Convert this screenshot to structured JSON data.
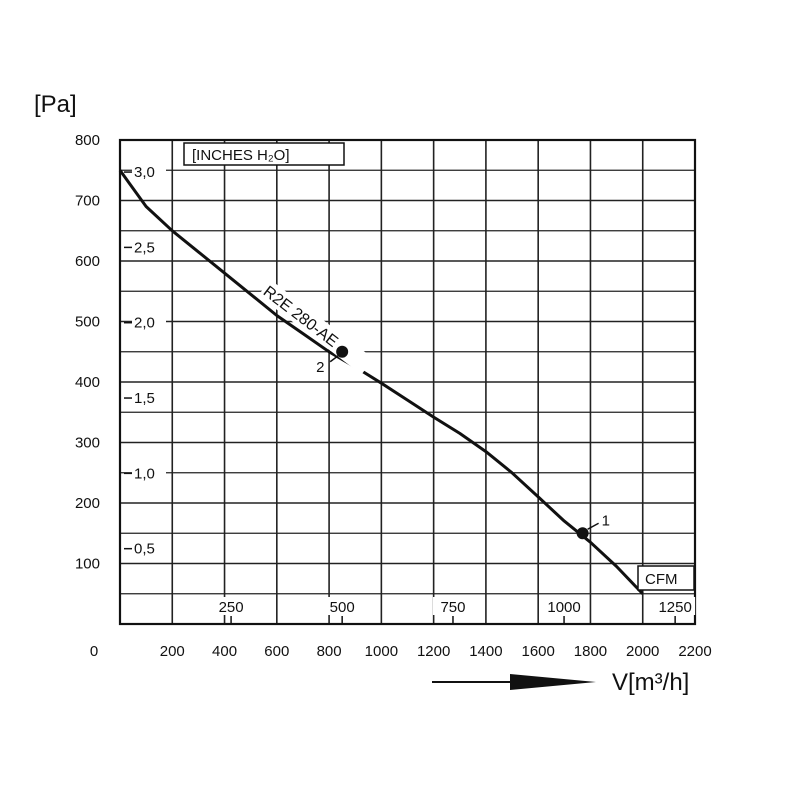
{
  "chart_data": {
    "type": "line",
    "y_unit_label": "[Pa]",
    "x_unit_label": "V[m³/h]",
    "secondary_y_label": "[INCHES H₂O]",
    "secondary_x_label": "CFM",
    "x_ticks": [
      "0",
      "200",
      "400",
      "600",
      "800",
      "1000",
      "1200",
      "1400",
      "1600",
      "1800",
      "2000",
      "2200"
    ],
    "y_ticks": [
      "100",
      "200",
      "300",
      "400",
      "500",
      "600",
      "700",
      "800"
    ],
    "secondary_x_ticks": [
      {
        "label": "250",
        "value": 425
      },
      {
        "label": "500",
        "value": 850
      },
      {
        "label": "750",
        "value": 1274
      },
      {
        "label": "1000",
        "value": 1699
      },
      {
        "label": "1250",
        "value": 2124
      }
    ],
    "secondary_y_ticks": [
      {
        "label": "0,5",
        "value": 124.5
      },
      {
        "label": "1,0",
        "value": 249
      },
      {
        "label": "1,5",
        "value": 373.5
      },
      {
        "label": "2,0",
        "value": 498
      },
      {
        "label": "2,5",
        "value": 622.5
      },
      {
        "label": "3,0",
        "value": 747
      }
    ],
    "xlim": [
      0,
      2200
    ],
    "ylim": [
      0,
      800
    ],
    "grid": true,
    "series": [
      {
        "name": "R2E 280-AE",
        "points": [
          [
            0,
            750
          ],
          [
            100,
            690
          ],
          [
            200,
            650
          ],
          [
            300,
            615
          ],
          [
            400,
            580
          ],
          [
            500,
            545
          ],
          [
            600,
            510
          ],
          [
            700,
            480
          ],
          [
            800,
            450
          ],
          [
            900,
            425
          ],
          [
            1000,
            398
          ],
          [
            1100,
            370
          ],
          [
            1200,
            342
          ],
          [
            1300,
            315
          ],
          [
            1400,
            285
          ],
          [
            1500,
            250
          ],
          [
            1600,
            210
          ],
          [
            1700,
            170
          ],
          [
            1800,
            135
          ],
          [
            1900,
            95
          ],
          [
            2000,
            50
          ]
        ]
      }
    ],
    "annotations": [
      {
        "label": "2",
        "x": 850,
        "y": 450
      },
      {
        "label": "1",
        "x": 1770,
        "y": 150
      }
    ]
  }
}
